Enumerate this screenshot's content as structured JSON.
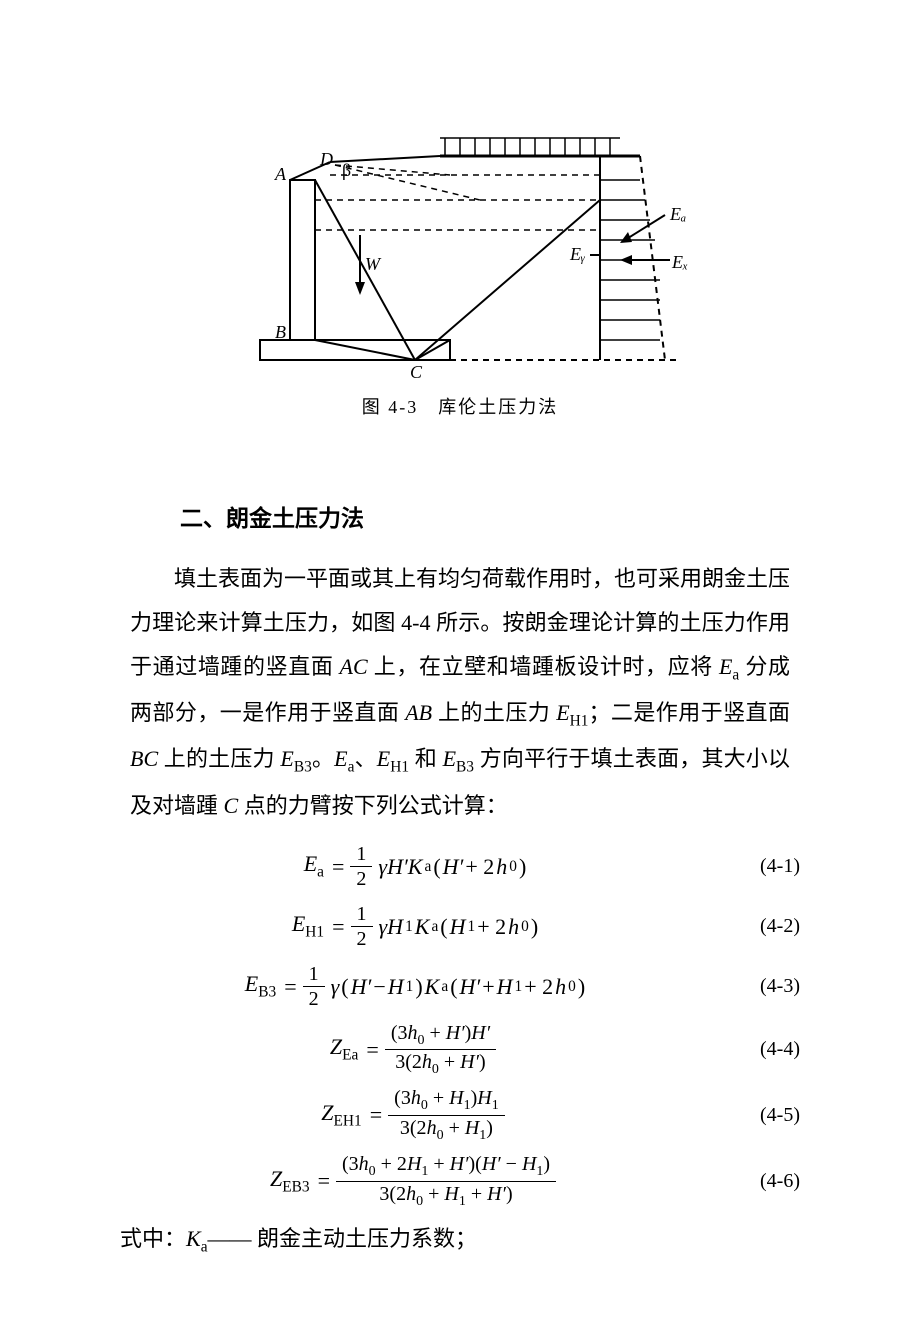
{
  "figure": {
    "caption": "图 4-3　库伦土压力法",
    "labels": {
      "A": "A",
      "B": "B",
      "C": "C",
      "D": "D",
      "beta": "β",
      "W": "W",
      "Ea": "Eₐ",
      "Ey": "Eᵧ",
      "Ex": "Eₓ"
    },
    "stroke": "#000000",
    "stroke_width": 2,
    "dash": "6,5"
  },
  "section_title": "二、朗金土压力法",
  "paragraph_html": "填土表面为一平面或其上有均匀荷载作用时，也可采用朗金土压力理论来计算土压力，如图 4-4 所示。按朗金理论计算的土压力作用于通过墙踵的竖直面 <span class='ital'>AC</span> 上，在立壁和墙踵板设计时，应将 <span class='ital'>E</span><span class='sub'>a</span> 分成两部分，一是作用于竖直面 <span class='ital'>AB</span> 上的土压力 <span class='ital'>E</span><span class='sub'>H1</span>；二是作用于竖直面 <span class='ital'>BC</span> 上的土压力 <span class='ital'>E</span><span class='sub'>B3</span>。<span class='ital'>E</span><span class='sub'>a</span>、<span class='ital'>E</span><span class='sub'>H1</span> 和 <span class='ital'>E</span><span class='sub'>B3</span> 方向平行于填土表面，其大小以及对墙踵 <span class='ital'>C</span> 点的力臂按下列公式计算：",
  "equations": [
    {
      "num": "(4-1)",
      "lhs_html": "<span class='ital'>E</span><span class='subr'>a</span>",
      "rhs_type": "half",
      "rhs_html": "<span class='ital'>γH′K</span><span class='subr'>a</span>( <span class='ital'>H′</span> + 2<span class='ital'>h</span><span class='subr'>0</span>)"
    },
    {
      "num": "(4-2)",
      "lhs_html": "<span class='ital'>E</span><span class='subr'>H1</span>",
      "rhs_type": "half",
      "rhs_html": "<span class='ital'>γH</span><span class='subr'>1</span><span class='ital'>K</span><span class='subr'>a</span>( <span class='ital'>H</span><span class='subr'>1</span> + 2<span class='ital'>h</span><span class='subr'>0</span>)"
    },
    {
      "num": "(4-3)",
      "lhs_html": "<span class='ital'>E</span><span class='subr'>B3</span>",
      "rhs_type": "half",
      "rhs_html": "<span class='ital'>γ</span>(<span class='ital'>H′</span> − <span class='ital'>H</span><span class='subr'>1</span>)<span class='ital'>K</span><span class='subr'>a</span>( <span class='ital'>H′</span> + <span class='ital'>H</span><span class='subr'>1</span> + 2<span class='ital'>h</span><span class='subr'>0</span>)"
    },
    {
      "num": "(4-4)",
      "lhs_html": "<span class='ital'>Z</span><span class='subr'>Ea</span>",
      "rhs_type": "frac",
      "num_html": "(3<span class='ital'>h</span><span class='subr'>0</span> + <span class='ital'>H′</span>)<span class='ital'>H′</span>",
      "den_html": "3(2<span class='ital'>h</span><span class='subr'>0</span> + <span class='ital'>H′</span>)"
    },
    {
      "num": "(4-5)",
      "lhs_html": "<span class='ital'>Z</span><span class='subr'>EH1</span>",
      "rhs_type": "frac",
      "num_html": "(3<span class='ital'>h</span><span class='subr'>0</span> + <span class='ital'>H</span><span class='subr'>1</span>)<span class='ital'>H</span><span class='subr'>1</span>",
      "den_html": "3(2<span class='ital'>h</span><span class='subr'>0</span> + <span class='ital'>H</span><span class='subr'>1</span>)"
    },
    {
      "num": "(4-6)",
      "lhs_html": "<span class='ital'>Z</span><span class='subr'>EB3</span>",
      "rhs_type": "frac",
      "num_html": "(3<span class='ital'>h</span><span class='subr'>0</span> + 2<span class='ital'>H</span><span class='subr'>1</span> + <span class='ital'>H′</span>)(<span class='ital'>H′</span> − <span class='ital'>H</span><span class='subr'>1</span>)",
      "den_html": "3(2<span class='ital'>h</span><span class='subr'>0</span> + <span class='ital'>H</span><span class='subr'>1</span> + <span class='ital'>H′</span>)"
    }
  ],
  "where_html": "式中：<span class='ital'>K</span><span class='sub'>a</span>—— 朗金主动土压力系数；"
}
